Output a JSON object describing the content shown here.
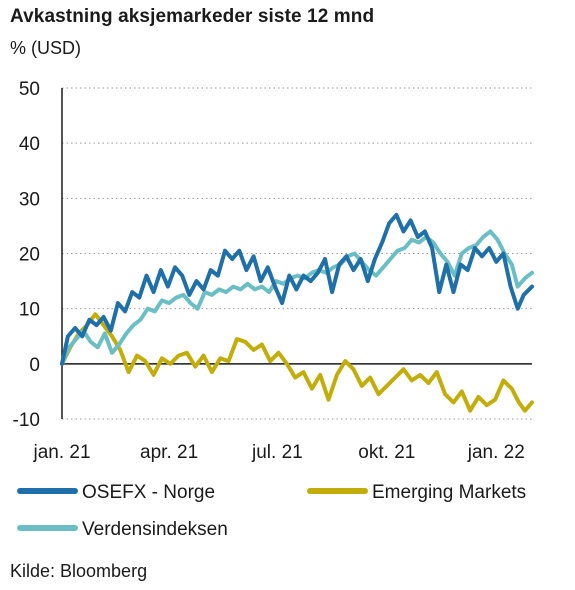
{
  "chart_data": {
    "type": "line",
    "title": "Avkastning aksjemarkeder siste 12 mnd",
    "ylabel": "% (USD)",
    "source": "Kilde: Bloomberg",
    "ylim": [
      -10,
      50
    ],
    "yticks": [
      50,
      40,
      30,
      20,
      10,
      0,
      -10
    ],
    "xlim": [
      "2021-01-01",
      "2022-01-31"
    ],
    "xticks": [
      {
        "label": "jan. 21",
        "date": "2021-01-01"
      },
      {
        "label": "apr. 21",
        "date": "2021-04-01"
      },
      {
        "label": "jul. 21",
        "date": "2021-07-01"
      },
      {
        "label": "okt. 21",
        "date": "2021-10-01"
      },
      {
        "label": "jan. 22",
        "date": "2022-01-01"
      }
    ],
    "grid": "horizontal-dotted",
    "legend": "bottom",
    "series": [
      {
        "name": "OSEFX - Norge",
        "color": "#1f6fa8",
        "points": [
          [
            "2021-01-01",
            0
          ],
          [
            "2021-01-06",
            5
          ],
          [
            "2021-01-12",
            6.5
          ],
          [
            "2021-01-18",
            5
          ],
          [
            "2021-01-24",
            8
          ],
          [
            "2021-01-30",
            7
          ],
          [
            "2021-02-05",
            8.5
          ],
          [
            "2021-02-11",
            6
          ],
          [
            "2021-02-17",
            11
          ],
          [
            "2021-02-23",
            9.5
          ],
          [
            "2021-03-01",
            13
          ],
          [
            "2021-03-07",
            12
          ],
          [
            "2021-03-13",
            16
          ],
          [
            "2021-03-19",
            13
          ],
          [
            "2021-03-25",
            17
          ],
          [
            "2021-03-31",
            14
          ],
          [
            "2021-04-06",
            17.5
          ],
          [
            "2021-04-12",
            16
          ],
          [
            "2021-04-18",
            12.5
          ],
          [
            "2021-04-24",
            15
          ],
          [
            "2021-04-30",
            13.5
          ],
          [
            "2021-05-06",
            17
          ],
          [
            "2021-05-12",
            16
          ],
          [
            "2021-05-18",
            20.5
          ],
          [
            "2021-05-24",
            19
          ],
          [
            "2021-05-30",
            20.5
          ],
          [
            "2021-06-05",
            17
          ],
          [
            "2021-06-11",
            19.5
          ],
          [
            "2021-06-17",
            15
          ],
          [
            "2021-06-23",
            17.5
          ],
          [
            "2021-06-29",
            14
          ],
          [
            "2021-07-05",
            11
          ],
          [
            "2021-07-11",
            16
          ],
          [
            "2021-07-17",
            13.5
          ],
          [
            "2021-07-23",
            16
          ],
          [
            "2021-07-29",
            15
          ],
          [
            "2021-08-04",
            16.5
          ],
          [
            "2021-08-10",
            19
          ],
          [
            "2021-08-16",
            13
          ],
          [
            "2021-08-22",
            18
          ],
          [
            "2021-08-28",
            19.5
          ],
          [
            "2021-09-03",
            17
          ],
          [
            "2021-09-09",
            19
          ],
          [
            "2021-09-15",
            15
          ],
          [
            "2021-09-21",
            19
          ],
          [
            "2021-09-27",
            22
          ],
          [
            "2021-10-03",
            25.5
          ],
          [
            "2021-10-09",
            27
          ],
          [
            "2021-10-15",
            24
          ],
          [
            "2021-10-21",
            26
          ],
          [
            "2021-10-27",
            23
          ],
          [
            "2021-11-02",
            24
          ],
          [
            "2021-11-08",
            21
          ],
          [
            "2021-11-14",
            13
          ],
          [
            "2021-11-20",
            18
          ],
          [
            "2021-11-26",
            13
          ],
          [
            "2021-12-02",
            18
          ],
          [
            "2021-12-08",
            17
          ],
          [
            "2021-12-14",
            21
          ],
          [
            "2021-12-20",
            19.5
          ],
          [
            "2021-12-26",
            21
          ],
          [
            "2022-01-01",
            18.5
          ],
          [
            "2022-01-07",
            20
          ],
          [
            "2022-01-13",
            14
          ],
          [
            "2022-01-19",
            10
          ],
          [
            "2022-01-24",
            12.5
          ],
          [
            "2022-01-31",
            14
          ]
        ]
      },
      {
        "name": "Emerging Markets",
        "color": "#c2ad0b",
        "points": [
          [
            "2021-01-01",
            0
          ],
          [
            "2021-01-08",
            3
          ],
          [
            "2021-01-15",
            5.5
          ],
          [
            "2021-01-22",
            7
          ],
          [
            "2021-01-29",
            9
          ],
          [
            "2021-02-05",
            7
          ],
          [
            "2021-02-12",
            5
          ],
          [
            "2021-02-19",
            2.5
          ],
          [
            "2021-02-26",
            -1.5
          ],
          [
            "2021-03-05",
            1.5
          ],
          [
            "2021-03-12",
            0.5
          ],
          [
            "2021-03-19",
            -2
          ],
          [
            "2021-03-26",
            1
          ],
          [
            "2021-04-02",
            0
          ],
          [
            "2021-04-09",
            1.5
          ],
          [
            "2021-04-16",
            2
          ],
          [
            "2021-04-23",
            -0.5
          ],
          [
            "2021-04-30",
            1.5
          ],
          [
            "2021-05-07",
            -1.5
          ],
          [
            "2021-05-14",
            1
          ],
          [
            "2021-05-21",
            0.5
          ],
          [
            "2021-05-28",
            4.5
          ],
          [
            "2021-06-04",
            4
          ],
          [
            "2021-06-11",
            2.5
          ],
          [
            "2021-06-18",
            3.5
          ],
          [
            "2021-06-25",
            0.5
          ],
          [
            "2021-07-02",
            2
          ],
          [
            "2021-07-09",
            0
          ],
          [
            "2021-07-16",
            -2.5
          ],
          [
            "2021-07-23",
            -1.5
          ],
          [
            "2021-07-30",
            -4.5
          ],
          [
            "2021-08-06",
            -2
          ],
          [
            "2021-08-13",
            -6.5
          ],
          [
            "2021-08-20",
            -2
          ],
          [
            "2021-08-27",
            0.5
          ],
          [
            "2021-09-03",
            -1
          ],
          [
            "2021-09-10",
            -4
          ],
          [
            "2021-09-17",
            -2.5
          ],
          [
            "2021-09-24",
            -5.5
          ],
          [
            "2021-10-01",
            -4
          ],
          [
            "2021-10-08",
            -2.5
          ],
          [
            "2021-10-15",
            -1
          ],
          [
            "2021-10-22",
            -3
          ],
          [
            "2021-10-29",
            -2
          ],
          [
            "2021-11-05",
            -3.5
          ],
          [
            "2021-11-12",
            -1.5
          ],
          [
            "2021-11-19",
            -5.5
          ],
          [
            "2021-11-26",
            -7
          ],
          [
            "2021-12-03",
            -5
          ],
          [
            "2021-12-10",
            -8.5
          ],
          [
            "2021-12-17",
            -6
          ],
          [
            "2021-12-24",
            -7.5
          ],
          [
            "2021-12-31",
            -6.5
          ],
          [
            "2022-01-07",
            -3
          ],
          [
            "2022-01-14",
            -4.5
          ],
          [
            "2022-01-20",
            -7
          ],
          [
            "2022-01-25",
            -8.5
          ],
          [
            "2022-01-31",
            -7
          ]
        ]
      },
      {
        "name": "Verdensindeksen",
        "color": "#6bbfc4",
        "points": [
          [
            "2021-01-01",
            0
          ],
          [
            "2021-01-07",
            3
          ],
          [
            "2021-01-13",
            4.5
          ],
          [
            "2021-01-19",
            6
          ],
          [
            "2021-01-25",
            4
          ],
          [
            "2021-01-31",
            3
          ],
          [
            "2021-02-06",
            5.5
          ],
          [
            "2021-02-12",
            2
          ],
          [
            "2021-02-18",
            3.5
          ],
          [
            "2021-02-24",
            5.5
          ],
          [
            "2021-03-02",
            7
          ],
          [
            "2021-03-08",
            8
          ],
          [
            "2021-03-14",
            10
          ],
          [
            "2021-03-20",
            9.5
          ],
          [
            "2021-03-26",
            11.5
          ],
          [
            "2021-04-01",
            11
          ],
          [
            "2021-04-07",
            12
          ],
          [
            "2021-04-13",
            12.5
          ],
          [
            "2021-04-19",
            11
          ],
          [
            "2021-04-25",
            10
          ],
          [
            "2021-05-01",
            13
          ],
          [
            "2021-05-07",
            12.5
          ],
          [
            "2021-05-13",
            13.5
          ],
          [
            "2021-05-19",
            13
          ],
          [
            "2021-05-25",
            14
          ],
          [
            "2021-05-31",
            13.5
          ],
          [
            "2021-06-06",
            14.5
          ],
          [
            "2021-06-12",
            13.5
          ],
          [
            "2021-06-18",
            14
          ],
          [
            "2021-06-24",
            13
          ],
          [
            "2021-06-30",
            15
          ],
          [
            "2021-07-06",
            14.5
          ],
          [
            "2021-07-12",
            15.5
          ],
          [
            "2021-07-18",
            16
          ],
          [
            "2021-07-24",
            15.5
          ],
          [
            "2021-07-30",
            16.5
          ],
          [
            "2021-08-05",
            17
          ],
          [
            "2021-08-11",
            16.5
          ],
          [
            "2021-08-17",
            17.5
          ],
          [
            "2021-08-23",
            18
          ],
          [
            "2021-08-29",
            19.5
          ],
          [
            "2021-09-04",
            20
          ],
          [
            "2021-09-10",
            18.5
          ],
          [
            "2021-09-16",
            17
          ],
          [
            "2021-09-22",
            16
          ],
          [
            "2021-09-28",
            17.5
          ],
          [
            "2021-10-04",
            19
          ],
          [
            "2021-10-10",
            20.5
          ],
          [
            "2021-10-16",
            21
          ],
          [
            "2021-10-22",
            22.5
          ],
          [
            "2021-10-28",
            22
          ],
          [
            "2021-11-03",
            23
          ],
          [
            "2021-11-09",
            22
          ],
          [
            "2021-11-15",
            20
          ],
          [
            "2021-11-21",
            18.5
          ],
          [
            "2021-11-27",
            16
          ],
          [
            "2021-12-03",
            20
          ],
          [
            "2021-12-09",
            21
          ],
          [
            "2021-12-15",
            21.5
          ],
          [
            "2021-12-21",
            23
          ],
          [
            "2021-12-27",
            24
          ],
          [
            "2022-01-02",
            22.5
          ],
          [
            "2022-01-08",
            20
          ],
          [
            "2022-01-14",
            18
          ],
          [
            "2022-01-19",
            14
          ],
          [
            "2022-01-25",
            15.5
          ],
          [
            "2022-01-31",
            16.5
          ]
        ]
      }
    ]
  }
}
